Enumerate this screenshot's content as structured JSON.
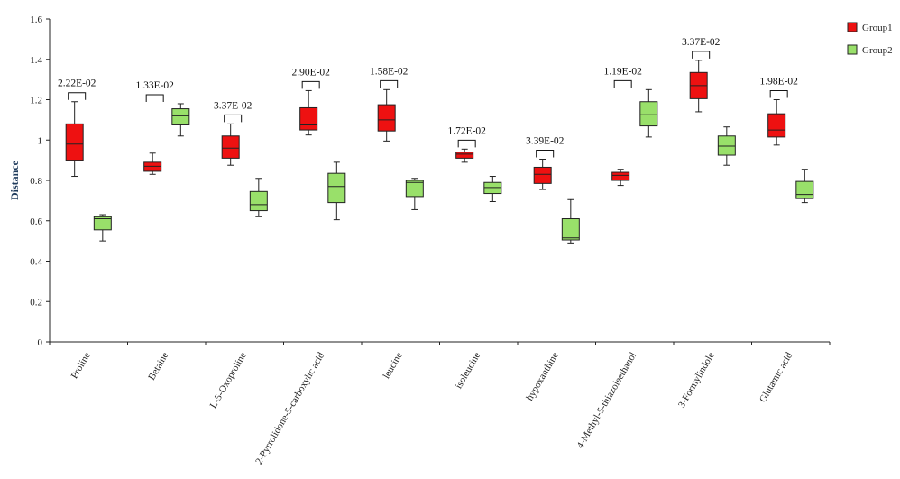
{
  "chart_data": {
    "type": "boxplot",
    "title": "",
    "xlabel": "",
    "ylabel": "Distance",
    "ylim": [
      0,
      1.6
    ],
    "yticks": [
      "0",
      "0.2",
      "0.4",
      "0.6",
      "0.8",
      "1",
      "1.2",
      "1.4",
      "1.6"
    ],
    "grid": false,
    "legend_position": "top-right",
    "colors": {
      "Group1": "#ee1111",
      "Group2": "#99e06a",
      "axis": "#222222"
    },
    "series": [
      {
        "name": "Group1",
        "color": "#ee1111"
      },
      {
        "name": "Group2",
        "color": "#99e06a"
      }
    ],
    "categories": [
      {
        "label": "Proline",
        "pvalue": "2.22E-02",
        "group1": {
          "min": 0.82,
          "q1": 0.9,
          "median": 0.98,
          "q3": 1.08,
          "max": 1.19
        },
        "group2": {
          "min": 0.5,
          "q1": 0.555,
          "median": 0.61,
          "q3": 0.62,
          "max": 0.63
        }
      },
      {
        "label": "Betaine",
        "pvalue": "1.33E-02",
        "group1": {
          "min": 0.83,
          "q1": 0.845,
          "median": 0.87,
          "q3": 0.89,
          "max": 0.935
        },
        "group2": {
          "min": 1.02,
          "q1": 1.075,
          "median": 1.12,
          "q3": 1.155,
          "max": 1.18
        }
      },
      {
        "label": "L-5-Oxoproline",
        "pvalue": "3.37E-02",
        "group1": {
          "min": 0.875,
          "q1": 0.91,
          "median": 0.96,
          "q3": 1.02,
          "max": 1.08
        },
        "group2": {
          "min": 0.62,
          "q1": 0.65,
          "median": 0.68,
          "q3": 0.745,
          "max": 0.81
        }
      },
      {
        "label": "2-Pyrrolidone-5-carboxylic acid",
        "pvalue": "2.90E-02",
        "group1": {
          "min": 1.025,
          "q1": 1.05,
          "median": 1.075,
          "q3": 1.16,
          "max": 1.245
        },
        "group2": {
          "min": 0.605,
          "q1": 0.69,
          "median": 0.77,
          "q3": 0.835,
          "max": 0.89
        }
      },
      {
        "label": "leucine",
        "pvalue": "1.58E-02",
        "group1": {
          "min": 0.995,
          "q1": 1.045,
          "median": 1.1,
          "q3": 1.175,
          "max": 1.25
        },
        "group2": {
          "min": 0.655,
          "q1": 0.72,
          "median": 0.79,
          "q3": 0.8,
          "max": 0.81
        }
      },
      {
        "label": "isoleucine",
        "pvalue": "1.72E-02",
        "group1": {
          "min": 0.89,
          "q1": 0.91,
          "median": 0.93,
          "q3": 0.94,
          "max": 0.955
        },
        "group2": {
          "min": 0.695,
          "q1": 0.735,
          "median": 0.765,
          "q3": 0.79,
          "max": 0.82
        }
      },
      {
        "label": "hypoxanthine",
        "pvalue": "3.39E-02",
        "group1": {
          "min": 0.755,
          "q1": 0.785,
          "median": 0.83,
          "q3": 0.865,
          "max": 0.905
        },
        "group2": {
          "min": 0.49,
          "q1": 0.505,
          "median": 0.515,
          "q3": 0.61,
          "max": 0.705
        }
      },
      {
        "label": "4-Methyl-5-thiazoleethanol",
        "pvalue": "1.19E-02",
        "group1": {
          "min": 0.775,
          "q1": 0.8,
          "median": 0.825,
          "q3": 0.84,
          "max": 0.855
        },
        "group2": {
          "min": 1.015,
          "q1": 1.07,
          "median": 1.125,
          "q3": 1.19,
          "max": 1.25
        }
      },
      {
        "label": "3-Formylindole",
        "pvalue": "3.37E-02",
        "group1": {
          "min": 1.14,
          "q1": 1.205,
          "median": 1.27,
          "q3": 1.335,
          "max": 1.395
        },
        "group2": {
          "min": 0.875,
          "q1": 0.925,
          "median": 0.97,
          "q3": 1.02,
          "max": 1.065
        }
      },
      {
        "label": "Glutamic acid",
        "pvalue": "1.98E-02",
        "group1": {
          "min": 0.975,
          "q1": 1.015,
          "median": 1.05,
          "q3": 1.13,
          "max": 1.2
        },
        "group2": {
          "min": 0.69,
          "q1": 0.71,
          "median": 0.73,
          "q3": 0.795,
          "max": 0.855
        }
      }
    ]
  }
}
